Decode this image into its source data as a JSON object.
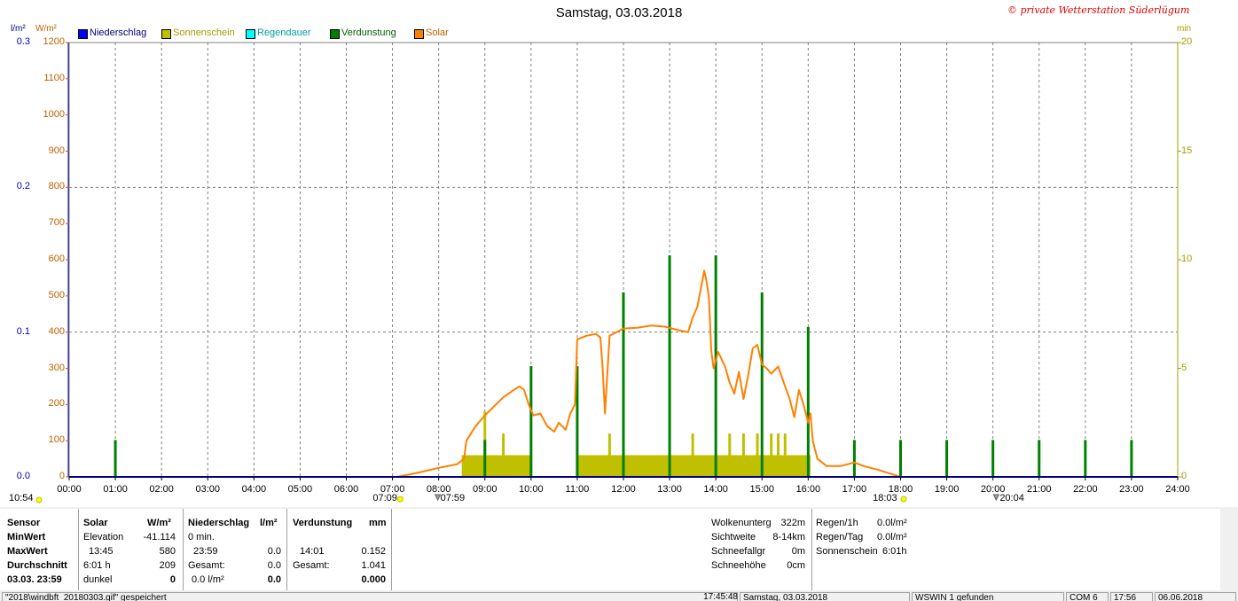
{
  "title": "Samstag, 03.03.2018",
  "copyright": "© private Wetterstation Süderlügum",
  "unit_left_blue": "l/m²",
  "unit_left_orange": "W/m²",
  "unit_right": "min",
  "legend": [
    {
      "label": "Niederschlag",
      "color": "#0000ff"
    },
    {
      "label": "Sonnenschein",
      "color": "#c0c000"
    },
    {
      "label": "Regendauer",
      "color": "#00ffff"
    },
    {
      "label": "Verdunstung",
      "color": "#008000"
    },
    {
      "label": "Solar",
      "color": "#ff8000"
    }
  ],
  "chart_data": {
    "type": "line",
    "title": "Samstag, 03.03.2018",
    "x_axis": {
      "ticks": [
        "00:00",
        "01:00",
        "02:00",
        "03:00",
        "04:00",
        "05:00",
        "06:00",
        "07:00",
        "08:00",
        "09:00",
        "10:00",
        "11:00",
        "12:00",
        "13:00",
        "14:00",
        "15:00",
        "16:00",
        "17:00",
        "18:00",
        "19:00",
        "20:00",
        "21:00",
        "22:00",
        "23:00",
        "24:00"
      ],
      "range_hours": [
        0,
        24
      ]
    },
    "y_axis_solar": {
      "unit": "W/m²",
      "range": [
        0,
        1200
      ],
      "ticks": [
        "0",
        "100",
        "200",
        "300",
        "400",
        "500",
        "600",
        "700",
        "800",
        "900",
        "1000",
        "1100",
        "1200"
      ]
    },
    "y_axis_rain": {
      "unit": "l/m²",
      "range": [
        0,
        0.3
      ],
      "ticks": [
        "0.0",
        "0.1",
        "0.2",
        "0.3"
      ]
    },
    "y_axis_minutes": {
      "unit": "min",
      "range": [
        0,
        20
      ],
      "ticks": [
        "0",
        "5",
        "10",
        "15",
        "20"
      ]
    },
    "grid": true,
    "series": [
      {
        "name": "Solar",
        "color": "#ff8000",
        "type": "line",
        "points": [
          [
            7.1,
            0
          ],
          [
            7.5,
            10
          ],
          [
            8.0,
            25
          ],
          [
            8.4,
            35
          ],
          [
            8.55,
            50
          ],
          [
            8.6,
            100
          ],
          [
            8.8,
            140
          ],
          [
            9.0,
            170
          ],
          [
            9.2,
            195
          ],
          [
            9.4,
            220
          ],
          [
            9.6,
            238
          ],
          [
            9.75,
            250
          ],
          [
            9.85,
            240
          ],
          [
            9.95,
            200
          ],
          [
            10.05,
            170
          ],
          [
            10.2,
            175
          ],
          [
            10.35,
            140
          ],
          [
            10.5,
            125
          ],
          [
            10.6,
            150
          ],
          [
            10.75,
            130
          ],
          [
            10.85,
            175
          ],
          [
            10.95,
            200
          ],
          [
            11.0,
            380
          ],
          [
            11.2,
            390
          ],
          [
            11.4,
            395
          ],
          [
            11.5,
            385
          ],
          [
            11.55,
            300
          ],
          [
            11.6,
            175
          ],
          [
            11.7,
            390
          ],
          [
            11.85,
            400
          ],
          [
            12.0,
            410
          ],
          [
            12.3,
            412
          ],
          [
            12.6,
            418
          ],
          [
            12.9,
            415
          ],
          [
            13.2,
            405
          ],
          [
            13.4,
            400
          ],
          [
            13.5,
            440
          ],
          [
            13.6,
            470
          ],
          [
            13.7,
            535
          ],
          [
            13.75,
            570
          ],
          [
            13.8,
            540
          ],
          [
            13.85,
            495
          ],
          [
            13.9,
            350
          ],
          [
            13.95,
            300
          ],
          [
            14.05,
            345
          ],
          [
            14.2,
            305
          ],
          [
            14.3,
            260
          ],
          [
            14.4,
            230
          ],
          [
            14.5,
            290
          ],
          [
            14.6,
            215
          ],
          [
            14.7,
            280
          ],
          [
            14.8,
            355
          ],
          [
            14.9,
            365
          ],
          [
            15.0,
            310
          ],
          [
            15.1,
            300
          ],
          [
            15.2,
            285
          ],
          [
            15.35,
            305
          ],
          [
            15.5,
            250
          ],
          [
            15.6,
            215
          ],
          [
            15.7,
            165
          ],
          [
            15.8,
            240
          ],
          [
            15.9,
            200
          ],
          [
            16.0,
            150
          ],
          [
            16.05,
            175
          ],
          [
            16.1,
            100
          ],
          [
            16.2,
            50
          ],
          [
            16.4,
            30
          ],
          [
            16.7,
            30
          ],
          [
            17.0,
            40
          ],
          [
            17.2,
            30
          ],
          [
            17.5,
            20
          ],
          [
            17.8,
            8
          ],
          [
            18.0,
            0
          ]
        ]
      },
      {
        "name": "Verdunstung",
        "color": "#008000",
        "type": "bar",
        "unit": "min",
        "values": [
          [
            1.0,
            1.7
          ],
          [
            9.0,
            1.7
          ],
          [
            10.0,
            5.1
          ],
          [
            11.0,
            5.1
          ],
          [
            12.0,
            8.5
          ],
          [
            13.0,
            10.2
          ],
          [
            14.0,
            10.2
          ],
          [
            15.0,
            8.5
          ],
          [
            16.0,
            6.9
          ],
          [
            17.0,
            1.7
          ],
          [
            18.0,
            1.7
          ],
          [
            19.0,
            1.7
          ],
          [
            20.0,
            1.7
          ],
          [
            21.0,
            1.7
          ],
          [
            22.0,
            1.7
          ],
          [
            23.0,
            1.7
          ]
        ]
      },
      {
        "name": "Sonnenschein",
        "color": "#c0c000",
        "type": "bar",
        "unit": "min",
        "blocks": [
          [
            8.5,
            10.0,
            1.0
          ],
          [
            11.0,
            16.05,
            1.0
          ]
        ],
        "spikes": [
          [
            9.0,
            3.0
          ],
          [
            9.4,
            2.0
          ],
          [
            11.7,
            2.0
          ],
          [
            13.5,
            2.0
          ],
          [
            14.3,
            2.0
          ],
          [
            14.6,
            2.0
          ],
          [
            14.9,
            2.0
          ],
          [
            15.2,
            2.0
          ],
          [
            15.35,
            2.0
          ],
          [
            15.5,
            2.0
          ]
        ]
      },
      {
        "name": "Niederschlag",
        "color": "#0000ff",
        "type": "bar",
        "unit": "l/m²",
        "values": [
          [
            0,
            0.0
          ],
          [
            24,
            0.0
          ]
        ]
      }
    ],
    "markers": [
      {
        "label": "07:09",
        "hour": 7.15
      },
      {
        "label": "07:59",
        "hour": 7.98
      },
      {
        "label": "18:03",
        "hour": 18.05
      },
      {
        "label": "20:04",
        "hour": 20.07
      },
      {
        "label": "10:54",
        "hour": 0
      }
    ]
  },
  "info": {
    "col1": {
      "header": "Sensor",
      "rows": [
        "MinWert",
        "MaxWert",
        "Durchschnitt",
        "03.03.  23:59"
      ]
    },
    "col2": {
      "header": "Solar",
      "unit": "W/m²",
      "rows": [
        [
          "Elevation",
          "-41.114"
        ],
        [
          "13:45",
          "580"
        ],
        [
          "6:01 h",
          "209"
        ],
        [
          "dunkel",
          "0"
        ]
      ]
    },
    "col3": {
      "header": "Niederschlag",
      "unit": "l/m²",
      "rows": [
        [
          "0 min.",
          ""
        ],
        [
          "23:59",
          "0.0"
        ],
        [
          "Gesamt:",
          "0.0"
        ],
        [
          "0.0 l/m²",
          "0.0"
        ]
      ]
    },
    "col4": {
      "header": "Verdunstung",
      "unit": "mm",
      "rows": [
        [
          "",
          ""
        ],
        [
          "14:01",
          "0.152"
        ],
        [
          "Gesamt:",
          "1.041"
        ],
        [
          "",
          "0.000"
        ]
      ]
    },
    "col5": {
      "rows": [
        [
          "Wolkenunterg",
          "322m"
        ],
        [
          "Sichtweite",
          "8-14km"
        ],
        [
          "Schneefallgr",
          "0m"
        ],
        [
          "Schneehöhe",
          "0cm"
        ]
      ]
    },
    "col6": {
      "rows": [
        [
          "Regen/1h",
          "0.0l/m²"
        ],
        [
          "Regen/Tag",
          "0.0l/m²"
        ],
        [
          "Sonnenschein",
          "6:01h"
        ]
      ]
    }
  },
  "status": {
    "file": "\"2018\\windbft_20180303.gif\" gespeichert",
    "time": "17:45:48",
    "date": "Samstag, 03.03.2018",
    "device": "WSWIN 1 gefunden",
    "port": "COM 6",
    "clock": "17:56",
    "today": "06.06.2018"
  }
}
